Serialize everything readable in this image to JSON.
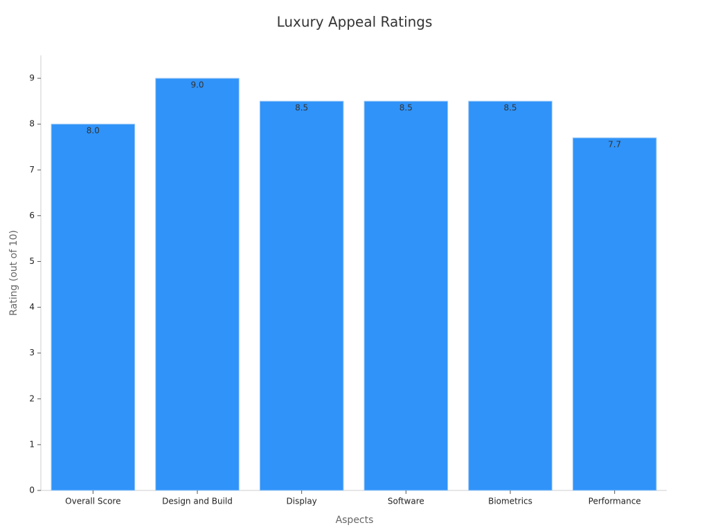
{
  "chart_data": {
    "type": "bar",
    "title": "Luxury Appeal Ratings",
    "x_label": "Aspects",
    "y_label": "Rating (out of 10)",
    "categories": [
      "Overall Score",
      "Design and Build",
      "Display",
      "Software",
      "Biometrics",
      "Performance"
    ],
    "values": [
      8.0,
      9.0,
      8.5,
      8.5,
      8.5,
      7.7
    ],
    "value_labels": [
      "8.0",
      "9.0",
      "8.5",
      "8.5",
      "8.5",
      "7.7"
    ],
    "color": "#2f93f9",
    "ylim": [
      0,
      9.5
    ],
    "yticks": [
      0,
      1,
      2,
      3,
      4,
      5,
      6,
      7,
      8,
      9
    ],
    "grid": false
  }
}
